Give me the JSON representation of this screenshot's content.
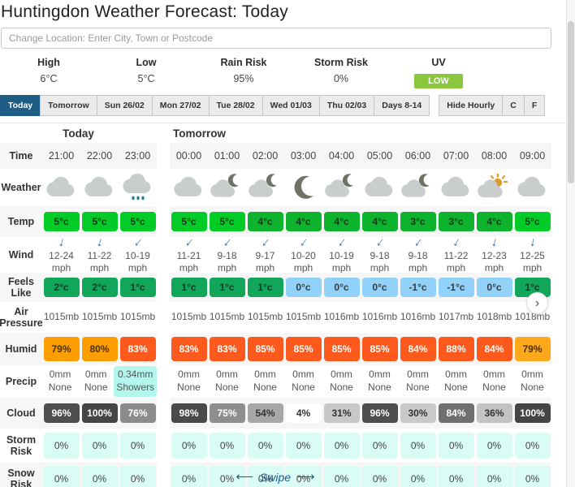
{
  "title": "Huntingdon Weather Forecast: Today",
  "search": {
    "placeholder": "Change Location: Enter City, Town or Postcode"
  },
  "summary": [
    {
      "label": "High",
      "value": "6°C"
    },
    {
      "label": "Low",
      "value": "5°C"
    },
    {
      "label": "Rain Risk",
      "value": "95%"
    },
    {
      "label": "Storm Risk",
      "value": "0%"
    },
    {
      "label": "UV",
      "value": "LOW",
      "badge": true,
      "badge_color": "#8cc63e"
    }
  ],
  "tabs": {
    "active_color": "#1d5c84",
    "day_tabs": [
      {
        "label": "Today",
        "active": true
      },
      {
        "label": "Tomorrow"
      },
      {
        "label": "Sun 26/02"
      },
      {
        "label": "Mon 27/02"
      },
      {
        "label": "Tue 28/02"
      },
      {
        "label": "Wed 01/03"
      },
      {
        "label": "Thu 02/03"
      },
      {
        "label": "Days 8-14"
      }
    ],
    "option_tabs": [
      {
        "label": "Hide Hourly"
      },
      {
        "label": "C"
      },
      {
        "label": "F"
      }
    ]
  },
  "table": {
    "sections": [
      "Today",
      "Tomorrow"
    ],
    "icon_colors": {
      "cloud": "#c9cdcd",
      "moon": "#6e7363",
      "sun": "#dd9b28",
      "drop": "#1d7f91"
    },
    "rows": [
      {
        "label": "Time",
        "type": "plain",
        "cells": [
          {
            "t": "21:00"
          },
          {
            "t": "22:00"
          },
          {
            "t": "23:00"
          },
          {
            "t": "00:00"
          },
          {
            "t": "01:00"
          },
          {
            "t": "02:00"
          },
          {
            "t": "03:00"
          },
          {
            "t": "04:00"
          },
          {
            "t": "05:00"
          },
          {
            "t": "06:00"
          },
          {
            "t": "07:00"
          },
          {
            "t": "08:00"
          },
          {
            "t": "09:00"
          }
        ]
      },
      {
        "label": "Weather",
        "type": "icon",
        "cells": [
          {
            "icon": "cloud"
          },
          {
            "icon": "cloud"
          },
          {
            "icon": "rain-cloud"
          },
          {
            "icon": "cloud"
          },
          {
            "icon": "cloud-moon"
          },
          {
            "icon": "cloud-moon"
          },
          {
            "icon": "moon"
          },
          {
            "icon": "cloud-moon"
          },
          {
            "icon": "cloud"
          },
          {
            "icon": "cloud-moon"
          },
          {
            "icon": "cloud"
          },
          {
            "icon": "sun-cloud"
          },
          {
            "icon": "cloud"
          }
        ]
      },
      {
        "label": "Temp",
        "type": "badge",
        "cells": [
          {
            "t": "5°c",
            "bg": "#00cb27",
            "fg": "#14361c"
          },
          {
            "t": "5°c",
            "bg": "#00cb27",
            "fg": "#14361c"
          },
          {
            "t": "5°c",
            "bg": "#00cb27",
            "fg": "#14361c"
          },
          {
            "t": "5°c",
            "bg": "#00cb27",
            "fg": "#14361c"
          },
          {
            "t": "5°c",
            "bg": "#00cb27",
            "fg": "#14361c"
          },
          {
            "t": "4°c",
            "bg": "#0db32d",
            "fg": "#14361c"
          },
          {
            "t": "4°c",
            "bg": "#0db32d",
            "fg": "#14361c"
          },
          {
            "t": "4°c",
            "bg": "#0db32d",
            "fg": "#14361c"
          },
          {
            "t": "4°c",
            "bg": "#0db32d",
            "fg": "#14361c"
          },
          {
            "t": "3°c",
            "bg": "#0db32d",
            "fg": "#14361c"
          },
          {
            "t": "3°c",
            "bg": "#0db32d",
            "fg": "#14361c"
          },
          {
            "t": "4°c",
            "bg": "#0db32d",
            "fg": "#14361c"
          },
          {
            "t": "5°c",
            "bg": "#00cb27",
            "fg": "#14361c"
          }
        ]
      },
      {
        "label": "Wind",
        "type": "wind",
        "cells": [
          {
            "t": "12-24",
            "s": "mph",
            "rot": 15
          },
          {
            "t": "11-22",
            "s": "mph",
            "rot": 15
          },
          {
            "t": "10-19",
            "s": "mph",
            "rot": 40
          },
          {
            "t": "11-21",
            "s": "mph",
            "rot": 40
          },
          {
            "t": "9-18",
            "s": "mph",
            "rot": 38
          },
          {
            "t": "9-17",
            "s": "mph",
            "rot": 38
          },
          {
            "t": "10-20",
            "s": "mph",
            "rot": 35
          },
          {
            "t": "10-19",
            "s": "mph",
            "rot": 35
          },
          {
            "t": "9-18",
            "s": "mph",
            "rot": 35
          },
          {
            "t": "9-18",
            "s": "mph",
            "rot": 35
          },
          {
            "t": "11-22",
            "s": "mph",
            "rot": 28
          },
          {
            "t": "12-23",
            "s": "mph",
            "rot": 12
          },
          {
            "t": "12-25",
            "s": "mph",
            "rot": 8
          }
        ]
      },
      {
        "label": "Feels Like",
        "type": "badge",
        "cells": [
          {
            "t": "2°c",
            "bg": "#12a65b",
            "fg": "#0b3b22"
          },
          {
            "t": "2°c",
            "bg": "#12a65b",
            "fg": "#0b3b22"
          },
          {
            "t": "1°c",
            "bg": "#12a65b",
            "fg": "#0b3b22"
          },
          {
            "t": "1°c",
            "bg": "#12a65b",
            "fg": "#0b3b22"
          },
          {
            "t": "1°c",
            "bg": "#12a65b",
            "fg": "#0b3b22"
          },
          {
            "t": "1°c",
            "bg": "#12a65b",
            "fg": "#0b3b22"
          },
          {
            "t": "0°c",
            "bg": "#93d2f8",
            "fg": "#333b44"
          },
          {
            "t": "0°c",
            "bg": "#93d2f8",
            "fg": "#333b44"
          },
          {
            "t": "0°c",
            "bg": "#93d2f8",
            "fg": "#333b44"
          },
          {
            "t": "-1°c",
            "bg": "#93d2f8",
            "fg": "#333b44"
          },
          {
            "t": "-1°c",
            "bg": "#93d2f8",
            "fg": "#333b44"
          },
          {
            "t": "0°c",
            "bg": "#93d2f8",
            "fg": "#333b44"
          },
          {
            "t": "1°c",
            "bg": "#12a65b",
            "fg": "#0b3b22"
          }
        ]
      },
      {
        "label": "Air Pressure",
        "type": "plain",
        "cells": [
          {
            "t": "1015mb"
          },
          {
            "t": "1015mb"
          },
          {
            "t": "1015mb"
          },
          {
            "t": "1015mb"
          },
          {
            "t": "1015mb"
          },
          {
            "t": "1015mb"
          },
          {
            "t": "1015mb"
          },
          {
            "t": "1016mb"
          },
          {
            "t": "1016mb"
          },
          {
            "t": "1016mb"
          },
          {
            "t": "1017mb"
          },
          {
            "t": "1018mb"
          },
          {
            "t": "1018mb"
          }
        ]
      },
      {
        "label": "Humid",
        "type": "badge",
        "cells": [
          {
            "t": "79%",
            "bg": "#ff9e00",
            "fg": "#4a3000"
          },
          {
            "t": "80%",
            "bg": "#ff9e00",
            "fg": "#4a3000"
          },
          {
            "t": "83%",
            "bg": "#ff5a1d",
            "fg": "#ffffff"
          },
          {
            "t": "83%",
            "bg": "#ff5a1d",
            "fg": "#ffffff"
          },
          {
            "t": "83%",
            "bg": "#ff5a1d",
            "fg": "#ffffff"
          },
          {
            "t": "85%",
            "bg": "#ff5a1d",
            "fg": "#ffffff"
          },
          {
            "t": "85%",
            "bg": "#ff5a1d",
            "fg": "#ffffff"
          },
          {
            "t": "85%",
            "bg": "#ff5a1d",
            "fg": "#ffffff"
          },
          {
            "t": "85%",
            "bg": "#ff5a1d",
            "fg": "#ffffff"
          },
          {
            "t": "84%",
            "bg": "#ff5a1d",
            "fg": "#ffffff"
          },
          {
            "t": "88%",
            "bg": "#ff5a1d",
            "fg": "#ffffff"
          },
          {
            "t": "84%",
            "bg": "#ff5a1d",
            "fg": "#ffffff"
          },
          {
            "t": "79%",
            "bg": "#ffa81c",
            "fg": "#4a3000"
          }
        ]
      },
      {
        "label": "Precip",
        "type": "plain",
        "cells": [
          {
            "t": "0mm",
            "s": "None"
          },
          {
            "t": "0mm",
            "s": "None"
          },
          {
            "t": "0.34mm",
            "s": "Showers",
            "bg": "#b3f6ee"
          },
          {
            "t": "0mm",
            "s": "None"
          },
          {
            "t": "0mm",
            "s": "None"
          },
          {
            "t": "0mm",
            "s": "None"
          },
          {
            "t": "0mm",
            "s": "None"
          },
          {
            "t": "0mm",
            "s": "None"
          },
          {
            "t": "0mm",
            "s": "None"
          },
          {
            "t": "0mm",
            "s": "None"
          },
          {
            "t": "0mm",
            "s": "None"
          },
          {
            "t": "0mm",
            "s": "None"
          },
          {
            "t": "0mm",
            "s": "None"
          }
        ]
      },
      {
        "label": "Cloud",
        "type": "badge",
        "cells": [
          {
            "t": "96%",
            "bg": "#4e4e4e",
            "fg": "#ffffff"
          },
          {
            "t": "100%",
            "bg": "#454545",
            "fg": "#ffffff"
          },
          {
            "t": "76%",
            "bg": "#8b8b8b",
            "fg": "#ffffff"
          },
          {
            "t": "98%",
            "bg": "#4a4a4a",
            "fg": "#ffffff"
          },
          {
            "t": "75%",
            "bg": "#8e8e8e",
            "fg": "#ffffff"
          },
          {
            "t": "54%",
            "bg": "#a7a7a7",
            "fg": "#333333"
          },
          {
            "t": "4%",
            "bg": "#ffffff",
            "fg": "#333333"
          },
          {
            "t": "31%",
            "bg": "#c8c8c8",
            "fg": "#333333"
          },
          {
            "t": "96%",
            "bg": "#4e4e4e",
            "fg": "#ffffff"
          },
          {
            "t": "30%",
            "bg": "#c9c9c9",
            "fg": "#333333"
          },
          {
            "t": "84%",
            "bg": "#6f6f6f",
            "fg": "#ffffff"
          },
          {
            "t": "36%",
            "bg": "#c3c3c3",
            "fg": "#333333"
          },
          {
            "t": "100%",
            "bg": "#454545",
            "fg": "#ffffff"
          }
        ]
      },
      {
        "label": "Storm Risk",
        "type": "badge",
        "cells": [
          {
            "t": "0%",
            "bg": "#d9fcf5"
          },
          {
            "t": "0%",
            "bg": "#d9fcf5"
          },
          {
            "t": "0%",
            "bg": "#d9fcf5"
          },
          {
            "t": "0%",
            "bg": "#d9fcf5"
          },
          {
            "t": "0%",
            "bg": "#d9fcf5"
          },
          {
            "t": "0%",
            "bg": "#d9fcf5"
          },
          {
            "t": "0%",
            "bg": "#d9fcf5"
          },
          {
            "t": "0%",
            "bg": "#d9fcf5"
          },
          {
            "t": "0%",
            "bg": "#d9fcf5"
          },
          {
            "t": "0%",
            "bg": "#d9fcf5"
          },
          {
            "t": "0%",
            "bg": "#d9fcf5"
          },
          {
            "t": "0%",
            "bg": "#d9fcf5"
          },
          {
            "t": "0%",
            "bg": "#d9fcf5"
          }
        ]
      },
      {
        "label": "Snow Risk",
        "type": "badge",
        "cells": [
          {
            "t": "0%",
            "bg": "#d9fcf5"
          },
          {
            "t": "0%",
            "bg": "#d9fcf5"
          },
          {
            "t": "0%",
            "bg": "#d9fcf5"
          },
          {
            "t": "0%",
            "bg": "#d9fcf5"
          },
          {
            "t": "0%",
            "bg": "#d9fcf5"
          },
          {
            "t": "0%",
            "bg": "#d9fcf5"
          },
          {
            "t": "0%",
            "bg": "#d9fcf5"
          },
          {
            "t": "0%",
            "bg": "#d9fcf5"
          },
          {
            "t": "0%",
            "bg": "#d9fcf5"
          },
          {
            "t": "0%",
            "bg": "#d9fcf5"
          },
          {
            "t": "0%",
            "bg": "#d9fcf5"
          },
          {
            "t": "0%",
            "bg": "#d9fcf5"
          },
          {
            "t": "0%",
            "bg": "#d9fcf5"
          }
        ]
      }
    ]
  },
  "scroll": {
    "chevron": "›"
  },
  "swipe": {
    "left_arrow": "⟵",
    "label": "Swipe",
    "right_arrow": "⟶"
  }
}
